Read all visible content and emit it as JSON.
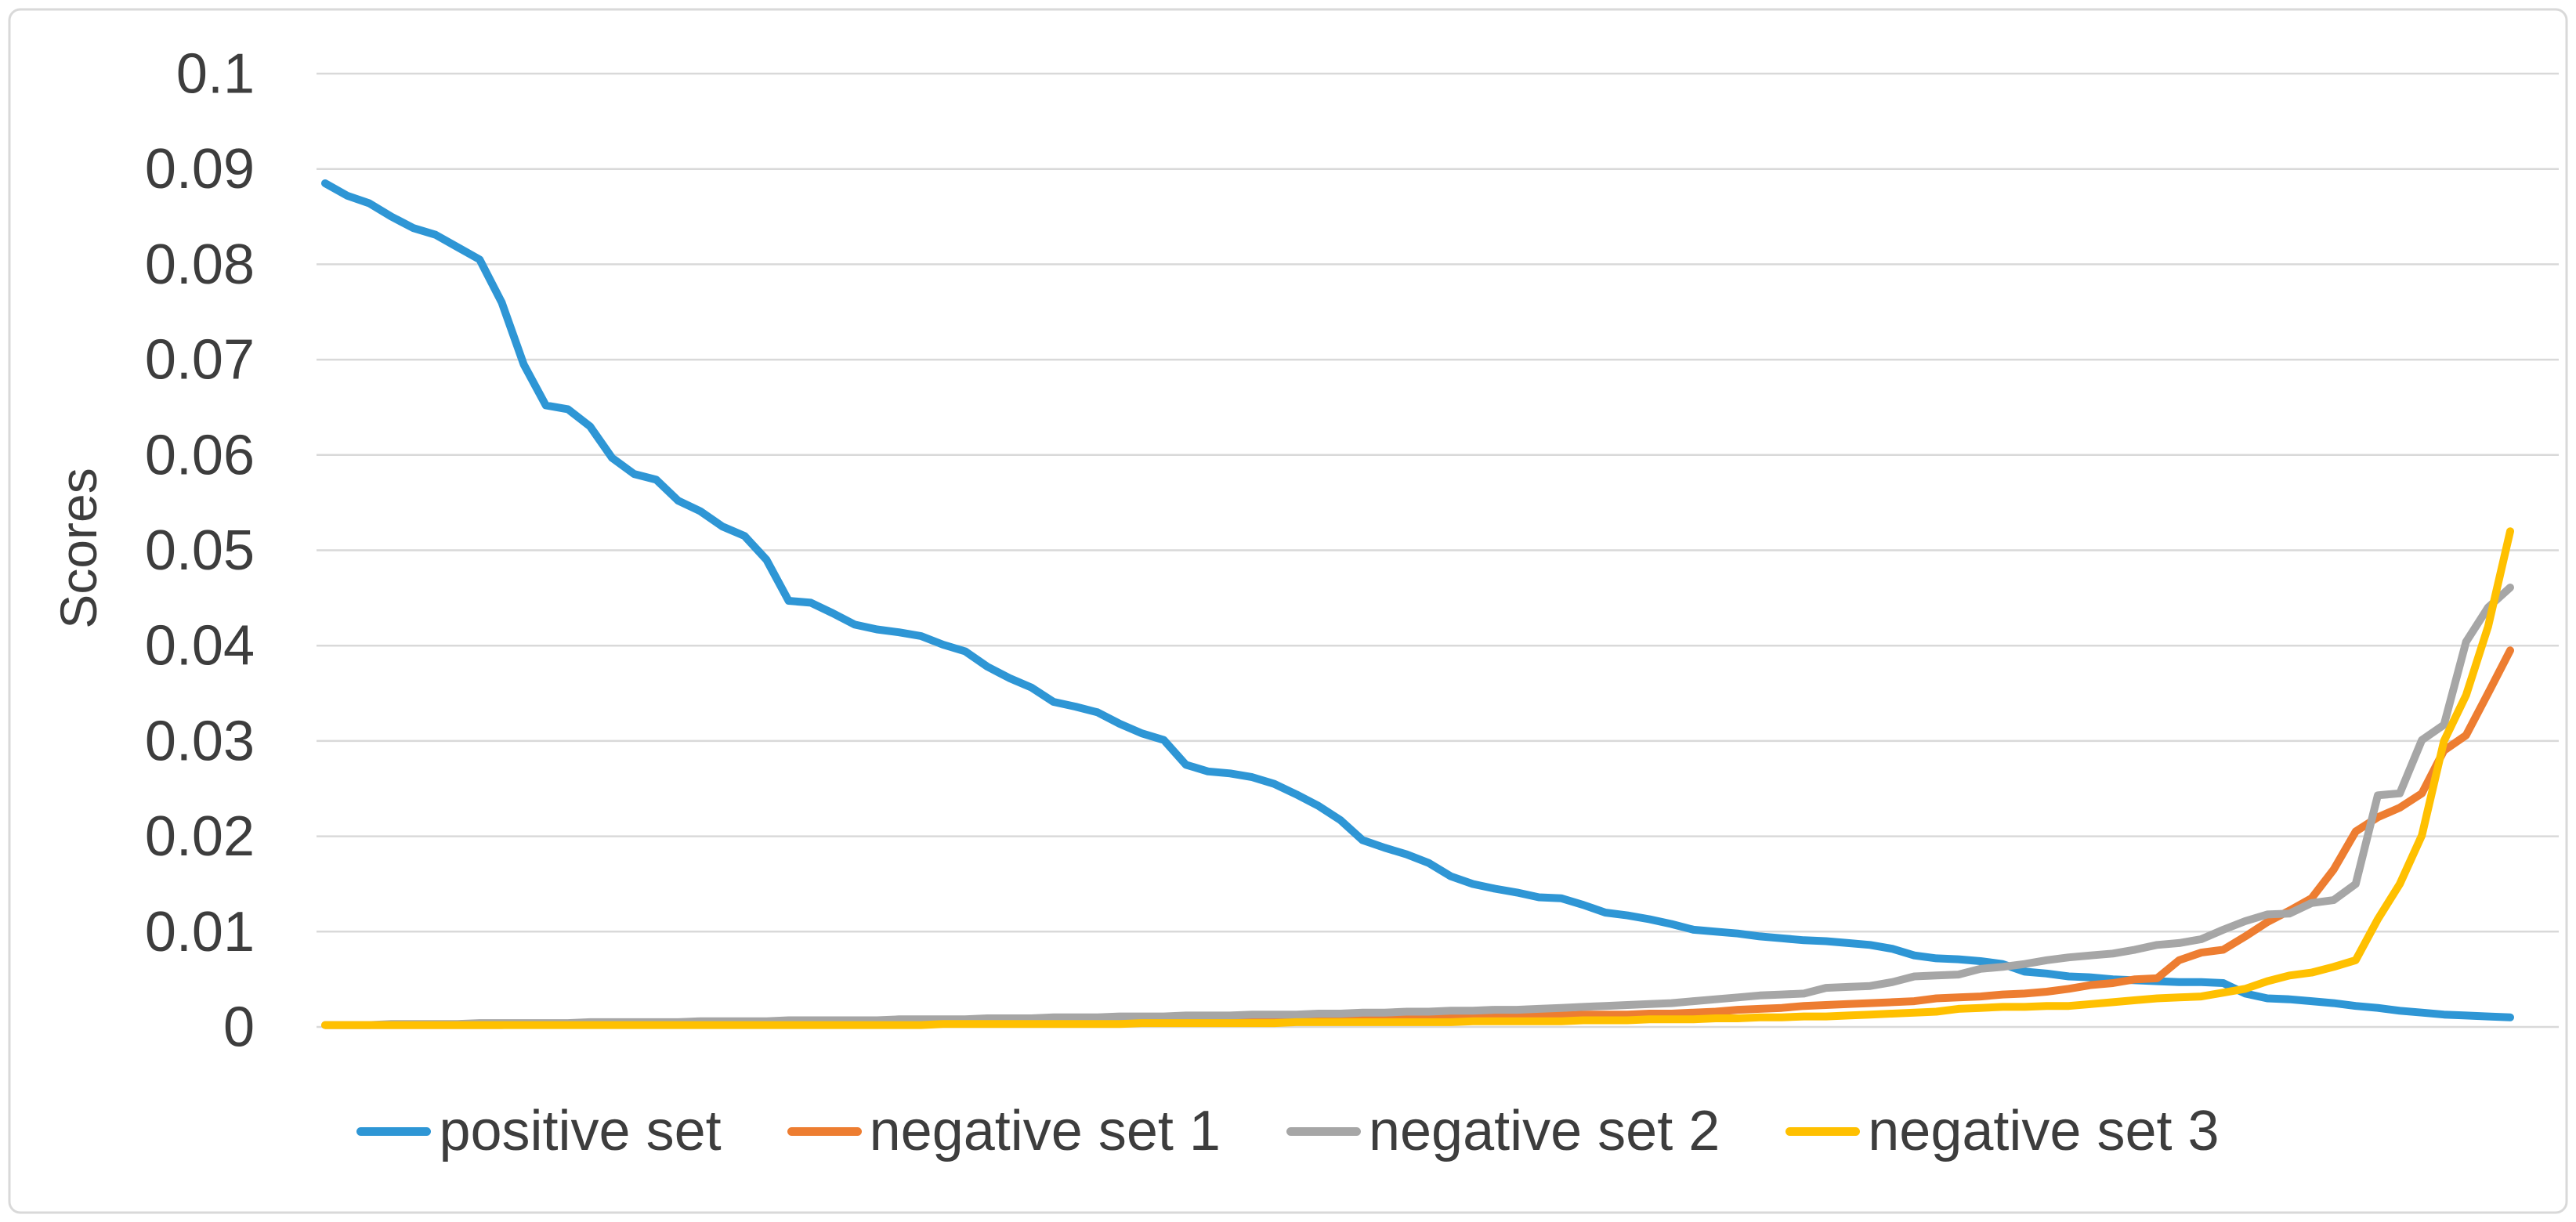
{
  "chart_data": {
    "type": "line",
    "title": "",
    "xlabel": "",
    "ylabel": "Scores",
    "ylim": [
      0,
      0.1
    ],
    "ytick_labels": [
      "0",
      "0.01",
      "0.02",
      "0.03",
      "0.04",
      "0.05",
      "0.06",
      "0.07",
      "0.08",
      "0.09",
      "0.1"
    ],
    "xtick_labels": [],
    "grid": "horizontal",
    "grid_color": "#d9d9d9",
    "border_color": "#d9d9d9",
    "text_color": "#3d3d3d",
    "legend_position": "bottom",
    "series": [
      {
        "name": "positive set",
        "color": "#2e96d5",
        "values": [
          0.0885,
          0.0872,
          0.0864,
          0.085,
          0.0838,
          0.0831,
          0.0818,
          0.0805,
          0.076,
          0.0695,
          0.0652,
          0.0648,
          0.063,
          0.0597,
          0.058,
          0.0574,
          0.0552,
          0.0541,
          0.0525,
          0.0515,
          0.049,
          0.0447,
          0.0445,
          0.0434,
          0.0422,
          0.0417,
          0.0414,
          0.041,
          0.0401,
          0.0394,
          0.0378,
          0.0366,
          0.0356,
          0.0341,
          0.0336,
          0.033,
          0.0318,
          0.0308,
          0.0301,
          0.0275,
          0.0268,
          0.0266,
          0.0262,
          0.0255,
          0.0244,
          0.0232,
          0.0217,
          0.0196,
          0.0188,
          0.0181,
          0.0172,
          0.0158,
          0.015,
          0.0145,
          0.0141,
          0.0136,
          0.0135,
          0.0128,
          0.012,
          0.0117,
          0.0113,
          0.0108,
          0.0102,
          0.01,
          0.0098,
          0.0095,
          0.0093,
          0.0091,
          0.009,
          0.0088,
          0.0086,
          0.0082,
          0.0075,
          0.0072,
          0.0071,
          0.0069,
          0.0066,
          0.0058,
          0.0056,
          0.0053,
          0.0052,
          0.005,
          0.0049,
          0.0048,
          0.0047,
          0.0047,
          0.0046,
          0.0035,
          0.003,
          0.0029,
          0.0027,
          0.0025,
          0.0022,
          0.002,
          0.0017,
          0.0015,
          0.0013,
          0.0012,
          0.0011,
          0.001
        ]
      },
      {
        "name": "negative set 1",
        "color": "#ed7d31",
        "values": [
          0.0002,
          0.0002,
          0.0002,
          0.0002,
          0.0002,
          0.0002,
          0.0002,
          0.0002,
          0.0002,
          0.0003,
          0.0003,
          0.0003,
          0.0003,
          0.0003,
          0.0003,
          0.0003,
          0.0003,
          0.0003,
          0.0003,
          0.0003,
          0.0003,
          0.0003,
          0.0003,
          0.0004,
          0.0004,
          0.0004,
          0.0004,
          0.0004,
          0.0005,
          0.0005,
          0.0005,
          0.0005,
          0.0006,
          0.0006,
          0.0006,
          0.0007,
          0.0007,
          0.0007,
          0.0008,
          0.0008,
          0.0008,
          0.0008,
          0.0009,
          0.0009,
          0.0009,
          0.001,
          0.001,
          0.001,
          0.001,
          0.0011,
          0.0011,
          0.0011,
          0.0011,
          0.0011,
          0.0012,
          0.0012,
          0.0012,
          0.0013,
          0.0013,
          0.0013,
          0.0014,
          0.0014,
          0.0015,
          0.0016,
          0.0018,
          0.0019,
          0.002,
          0.0022,
          0.0023,
          0.0024,
          0.0025,
          0.0026,
          0.0027,
          0.003,
          0.0031,
          0.0032,
          0.0034,
          0.0035,
          0.0037,
          0.004,
          0.0044,
          0.0046,
          0.005,
          0.0051,
          0.007,
          0.0078,
          0.0081,
          0.0095,
          0.011,
          0.0122,
          0.0135,
          0.0165,
          0.0205,
          0.022,
          0.023,
          0.0245,
          0.029,
          0.0306,
          0.035,
          0.0395
        ]
      },
      {
        "name": "negative set 2",
        "color": "#a6a6a6",
        "values": [
          0.0002,
          0.0002,
          0.0002,
          0.0003,
          0.0003,
          0.0003,
          0.0003,
          0.0004,
          0.0004,
          0.0004,
          0.0004,
          0.0004,
          0.0005,
          0.0005,
          0.0005,
          0.0005,
          0.0005,
          0.0006,
          0.0006,
          0.0006,
          0.0006,
          0.0007,
          0.0007,
          0.0007,
          0.0007,
          0.0007,
          0.0008,
          0.0008,
          0.0008,
          0.0008,
          0.0009,
          0.0009,
          0.0009,
          0.001,
          0.001,
          0.001,
          0.0011,
          0.0011,
          0.0011,
          0.0012,
          0.0012,
          0.0012,
          0.0013,
          0.0013,
          0.0013,
          0.0014,
          0.0014,
          0.0015,
          0.0015,
          0.0016,
          0.0016,
          0.0017,
          0.0017,
          0.0018,
          0.0018,
          0.0019,
          0.002,
          0.0021,
          0.0022,
          0.0023,
          0.0024,
          0.0025,
          0.0027,
          0.0029,
          0.0031,
          0.0033,
          0.0034,
          0.0035,
          0.0041,
          0.0042,
          0.0043,
          0.0047,
          0.0053,
          0.0054,
          0.0055,
          0.0061,
          0.0063,
          0.0066,
          0.007,
          0.0073,
          0.0075,
          0.0077,
          0.0081,
          0.0086,
          0.0088,
          0.0092,
          0.0102,
          0.0111,
          0.0118,
          0.0119,
          0.013,
          0.0133,
          0.015,
          0.0243,
          0.0245,
          0.0301,
          0.0317,
          0.0404,
          0.044,
          0.0461
        ]
      },
      {
        "name": "negative set 3",
        "color": "#ffc000",
        "values": [
          0.0002,
          0.0002,
          0.0002,
          0.0002,
          0.0002,
          0.0002,
          0.0002,
          0.0002,
          0.0002,
          0.0002,
          0.0002,
          0.0002,
          0.0002,
          0.0002,
          0.0002,
          0.0002,
          0.0002,
          0.0002,
          0.0002,
          0.0002,
          0.0002,
          0.0002,
          0.0002,
          0.0002,
          0.0002,
          0.0002,
          0.0002,
          0.0002,
          0.0003,
          0.0003,
          0.0003,
          0.0003,
          0.0003,
          0.0003,
          0.0003,
          0.0003,
          0.0003,
          0.0004,
          0.0004,
          0.0004,
          0.0004,
          0.0004,
          0.0004,
          0.0004,
          0.0005,
          0.0005,
          0.0005,
          0.0005,
          0.0005,
          0.0005,
          0.0005,
          0.0005,
          0.0006,
          0.0006,
          0.0006,
          0.0006,
          0.0006,
          0.0007,
          0.0007,
          0.0007,
          0.0008,
          0.0008,
          0.0008,
          0.0009,
          0.0009,
          0.001,
          0.001,
          0.0011,
          0.0011,
          0.0012,
          0.0013,
          0.0014,
          0.0015,
          0.0016,
          0.0019,
          0.002,
          0.0021,
          0.0021,
          0.0022,
          0.0022,
          0.0024,
          0.0026,
          0.0028,
          0.003,
          0.0031,
          0.0032,
          0.0036,
          0.004,
          0.0048,
          0.0054,
          0.0057,
          0.0063,
          0.007,
          0.0113,
          0.015,
          0.0201,
          0.03,
          0.0348,
          0.042,
          0.052
        ]
      }
    ]
  }
}
